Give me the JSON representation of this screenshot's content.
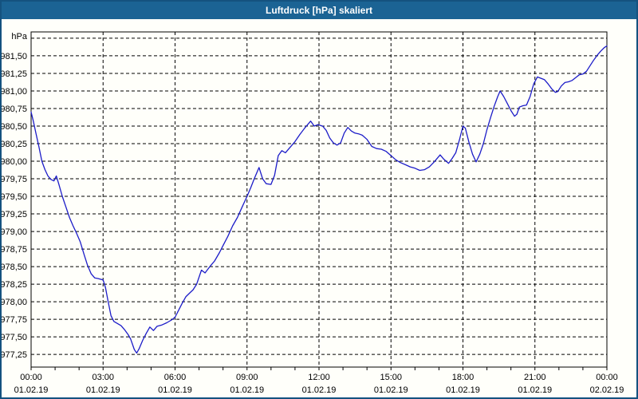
{
  "window": {
    "title": "Luftdruck [hPa] skaliert"
  },
  "colors": {
    "window_border": "#14527f",
    "titlebar_bg": "#1b6394",
    "titlebar_text": "#ffffff",
    "content_bg": "#fffffa",
    "grid": "#000000",
    "axis": "#000000",
    "tick_label": "#000000",
    "line": "#1c1cc8"
  },
  "chart_data": {
    "type": "line",
    "title": "Luftdruck [hPa] skaliert",
    "ylabel": "hPa",
    "xlabel": "",
    "grid": true,
    "legend_position": "none",
    "ylim": [
      977.07,
      981.84
    ],
    "xlim_hours": [
      0,
      24
    ],
    "x_minor_tick_step_hours": 1,
    "unlabeled_y_gridlines": [
      981.75
    ],
    "y_ticks": [
      {
        "value": 981.5,
        "label": "981,50"
      },
      {
        "value": 981.25,
        "label": "981,25"
      },
      {
        "value": 981.0,
        "label": "981,00"
      },
      {
        "value": 980.75,
        "label": "980,75"
      },
      {
        "value": 980.5,
        "label": "980,50"
      },
      {
        "value": 980.25,
        "label": "980,25"
      },
      {
        "value": 980.0,
        "label": "980,00"
      },
      {
        "value": 979.75,
        "label": "979,75"
      },
      {
        "value": 979.5,
        "label": "979,50"
      },
      {
        "value": 979.25,
        "label": "979,25"
      },
      {
        "value": 979.0,
        "label": "979,00"
      },
      {
        "value": 978.75,
        "label": "978,75"
      },
      {
        "value": 978.5,
        "label": "978,50"
      },
      {
        "value": 978.25,
        "label": "978,25"
      },
      {
        "value": 978.0,
        "label": "978,00"
      },
      {
        "value": 977.75,
        "label": "977,75"
      },
      {
        "value": 977.5,
        "label": "977,50"
      },
      {
        "value": 977.25,
        "label": "977,25"
      }
    ],
    "x_major_ticks": [
      {
        "hour": 0,
        "time": "00:00",
        "date": "01.02.19"
      },
      {
        "hour": 3,
        "time": "03:00",
        "date": "01.02.19"
      },
      {
        "hour": 6,
        "time": "06:00",
        "date": "01.02.19"
      },
      {
        "hour": 9,
        "time": "09:00",
        "date": "01.02.19"
      },
      {
        "hour": 12,
        "time": "12:00",
        "date": "01.02.19"
      },
      {
        "hour": 15,
        "time": "15:00",
        "date": "01.02.19"
      },
      {
        "hour": 18,
        "time": "18:00",
        "date": "01.02.19"
      },
      {
        "hour": 21,
        "time": "21:00",
        "date": "01.02.19"
      },
      {
        "hour": 24,
        "time": "00:00",
        "date": "02.02.19"
      }
    ],
    "series": [
      {
        "name": "Luftdruck",
        "unit": "hPa",
        "color": "#1c1cc8",
        "points": [
          [
            0.0,
            980.7
          ],
          [
            0.1,
            980.56
          ],
          [
            0.2,
            980.4
          ],
          [
            0.33,
            980.2
          ],
          [
            0.45,
            980.0
          ],
          [
            0.58,
            979.88
          ],
          [
            0.7,
            979.79
          ],
          [
            0.83,
            979.74
          ],
          [
            0.95,
            979.72
          ],
          [
            1.05,
            979.79
          ],
          [
            1.15,
            979.68
          ],
          [
            1.3,
            979.5
          ],
          [
            1.45,
            979.35
          ],
          [
            1.6,
            979.2
          ],
          [
            1.75,
            979.08
          ],
          [
            1.9,
            978.97
          ],
          [
            2.05,
            978.85
          ],
          [
            2.2,
            978.68
          ],
          [
            2.35,
            978.52
          ],
          [
            2.5,
            978.4
          ],
          [
            2.65,
            978.34
          ],
          [
            2.8,
            978.33
          ],
          [
            3.0,
            978.31
          ],
          [
            3.1,
            978.2
          ],
          [
            3.2,
            978.02
          ],
          [
            3.33,
            977.8
          ],
          [
            3.45,
            977.72
          ],
          [
            3.6,
            977.69
          ],
          [
            3.75,
            977.66
          ],
          [
            3.9,
            977.6
          ],
          [
            4.05,
            977.53
          ],
          [
            4.15,
            977.47
          ],
          [
            4.3,
            977.32
          ],
          [
            4.4,
            977.27
          ],
          [
            4.5,
            977.33
          ],
          [
            4.65,
            977.45
          ],
          [
            4.8,
            977.55
          ],
          [
            4.95,
            977.64
          ],
          [
            5.1,
            977.59
          ],
          [
            5.25,
            977.65
          ],
          [
            5.45,
            977.67
          ],
          [
            5.65,
            977.7
          ],
          [
            5.85,
            977.74
          ],
          [
            6.0,
            977.78
          ],
          [
            6.15,
            977.88
          ],
          [
            6.3,
            977.98
          ],
          [
            6.45,
            978.07
          ],
          [
            6.6,
            978.12
          ],
          [
            6.75,
            978.17
          ],
          [
            6.9,
            978.25
          ],
          [
            7.1,
            978.45
          ],
          [
            7.25,
            978.41
          ],
          [
            7.45,
            978.5
          ],
          [
            7.65,
            978.58
          ],
          [
            7.85,
            978.7
          ],
          [
            8.0,
            978.8
          ],
          [
            8.2,
            978.93
          ],
          [
            8.4,
            979.08
          ],
          [
            8.6,
            979.2
          ],
          [
            8.8,
            979.35
          ],
          [
            9.0,
            979.5
          ],
          [
            9.15,
            979.62
          ],
          [
            9.3,
            979.75
          ],
          [
            9.5,
            979.91
          ],
          [
            9.65,
            979.75
          ],
          [
            9.8,
            979.68
          ],
          [
            10.0,
            979.67
          ],
          [
            10.15,
            979.8
          ],
          [
            10.3,
            980.08
          ],
          [
            10.45,
            980.15
          ],
          [
            10.6,
            980.12
          ],
          [
            10.75,
            980.18
          ],
          [
            11.0,
            980.28
          ],
          [
            11.2,
            980.38
          ],
          [
            11.4,
            980.47
          ],
          [
            11.65,
            980.57
          ],
          [
            11.8,
            980.5
          ],
          [
            11.95,
            980.52
          ],
          [
            12.15,
            980.5
          ],
          [
            12.3,
            980.44
          ],
          [
            12.45,
            980.33
          ],
          [
            12.6,
            980.26
          ],
          [
            12.75,
            980.23
          ],
          [
            12.9,
            980.26
          ],
          [
            13.05,
            980.4
          ],
          [
            13.2,
            980.48
          ],
          [
            13.35,
            980.43
          ],
          [
            13.5,
            980.4
          ],
          [
            13.65,
            980.39
          ],
          [
            13.8,
            980.37
          ],
          [
            14.0,
            980.31
          ],
          [
            14.2,
            980.21
          ],
          [
            14.4,
            980.18
          ],
          [
            14.6,
            980.17
          ],
          [
            14.8,
            980.14
          ],
          [
            15.0,
            980.08
          ],
          [
            15.2,
            980.02
          ],
          [
            15.4,
            979.98
          ],
          [
            15.6,
            979.95
          ],
          [
            15.8,
            979.92
          ],
          [
            16.0,
            979.9
          ],
          [
            16.2,
            979.87
          ],
          [
            16.4,
            979.88
          ],
          [
            16.6,
            979.92
          ],
          [
            16.8,
            979.99
          ],
          [
            17.05,
            980.09
          ],
          [
            17.2,
            980.03
          ],
          [
            17.4,
            979.97
          ],
          [
            17.55,
            980.04
          ],
          [
            17.7,
            980.12
          ],
          [
            17.85,
            980.3
          ],
          [
            18.0,
            980.5
          ],
          [
            18.1,
            980.47
          ],
          [
            18.25,
            980.27
          ],
          [
            18.4,
            980.1
          ],
          [
            18.55,
            979.99
          ],
          [
            18.7,
            980.1
          ],
          [
            18.85,
            980.25
          ],
          [
            19.0,
            980.45
          ],
          [
            19.15,
            980.62
          ],
          [
            19.3,
            980.78
          ],
          [
            19.45,
            980.92
          ],
          [
            19.55,
            981.0
          ],
          [
            19.7,
            980.92
          ],
          [
            19.85,
            980.82
          ],
          [
            20.0,
            980.72
          ],
          [
            20.15,
            980.64
          ],
          [
            20.25,
            980.67
          ],
          [
            20.35,
            980.77
          ],
          [
            20.5,
            980.79
          ],
          [
            20.65,
            980.8
          ],
          [
            20.8,
            980.92
          ],
          [
            20.95,
            981.1
          ],
          [
            21.1,
            981.2
          ],
          [
            21.25,
            981.18
          ],
          [
            21.4,
            981.16
          ],
          [
            21.55,
            981.1
          ],
          [
            21.7,
            981.03
          ],
          [
            21.85,
            980.98
          ],
          [
            21.95,
            980.99
          ],
          [
            22.1,
            981.07
          ],
          [
            22.25,
            981.12
          ],
          [
            22.4,
            981.13
          ],
          [
            22.55,
            981.15
          ],
          [
            22.7,
            981.19
          ],
          [
            22.85,
            981.23
          ],
          [
            23.0,
            981.24
          ],
          [
            23.15,
            981.28
          ],
          [
            23.3,
            981.36
          ],
          [
            23.45,
            981.44
          ],
          [
            23.6,
            981.51
          ],
          [
            23.75,
            981.57
          ],
          [
            23.9,
            981.62
          ],
          [
            24.0,
            981.64
          ]
        ]
      }
    ]
  }
}
